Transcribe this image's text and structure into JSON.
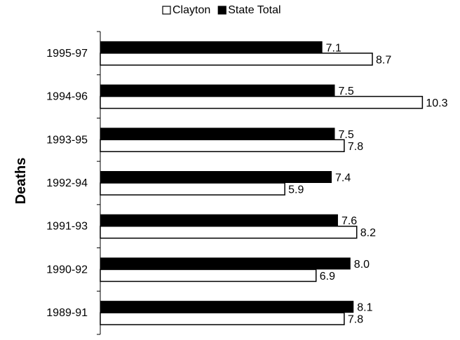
{
  "chart_data": {
    "type": "bar",
    "orientation": "horizontal",
    "title": "",
    "xlabel": "",
    "ylabel": "Deaths",
    "categories": [
      "1995-97",
      "1994-96",
      "1993-95",
      "1992-94",
      "1991-93",
      "1990-92",
      "1989-91"
    ],
    "series": [
      {
        "name": "State Total",
        "color": "#000000",
        "values": [
          7.1,
          7.5,
          7.5,
          7.4,
          7.6,
          8.0,
          8.1
        ],
        "labels": [
          "7.1",
          "7.5",
          "7.5",
          "7.4",
          "7.6",
          "8.0",
          "8.1"
        ]
      },
      {
        "name": "Clayton",
        "color": "#ffffff",
        "values": [
          8.7,
          10.3,
          7.8,
          5.9,
          8.2,
          6.9,
          7.8
        ],
        "labels": [
          "8.7",
          "10.3",
          "7.8",
          "5.9",
          "8.2",
          "6.9",
          "7.8"
        ]
      }
    ],
    "xlim": [
      0,
      14
    ],
    "grid": false,
    "legend_position": "top-center",
    "legend_order": [
      "Clayton",
      "State Total"
    ]
  }
}
